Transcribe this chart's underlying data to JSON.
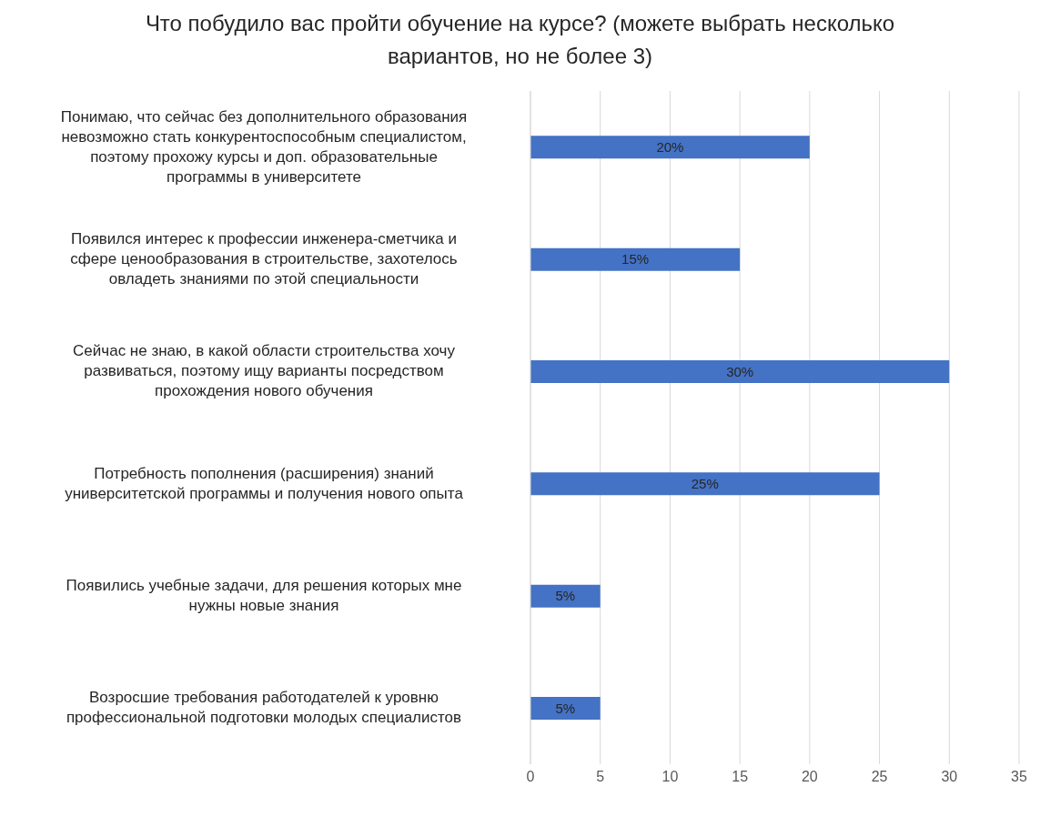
{
  "chart_data": {
    "type": "bar",
    "orientation": "horizontal",
    "title": "Что побудило вас пройти обучение на курсе? (можете выбрать несколько вариантов, но не более 3)",
    "categories": [
      "Понимаю, что сейчас без дополнительного образования невозможно стать конкурентоспособным специалистом, поэтому прохожу курсы и доп. образовательные программы в университете",
      "Появился интерес к профессии инженера-сметчика и сфере ценообразования в строительстве, захотелось овладеть знаниями по этой специальности",
      "Сейчас не знаю, в какой области строительства хочу развиваться, поэтому ищу варианты посредством прохождения нового обучения",
      "Потребность пополнения (расширения) знаний университетской программы и получения нового опыта",
      "Появились учебные задачи, для решения которых мне нужны новые знания",
      "Возросшие требования работодателей к уровню профессиональной подготовки молодых специалистов"
    ],
    "values": [
      20,
      15,
      30,
      25,
      5,
      5
    ],
    "value_labels": [
      "20%",
      "15%",
      "30%",
      "25%",
      "5%",
      "5%"
    ],
    "color": "#4472c4",
    "xlim": [
      0,
      35
    ],
    "xticks": [
      0,
      5,
      10,
      15,
      20,
      25,
      30,
      35
    ],
    "grid": "x"
  }
}
